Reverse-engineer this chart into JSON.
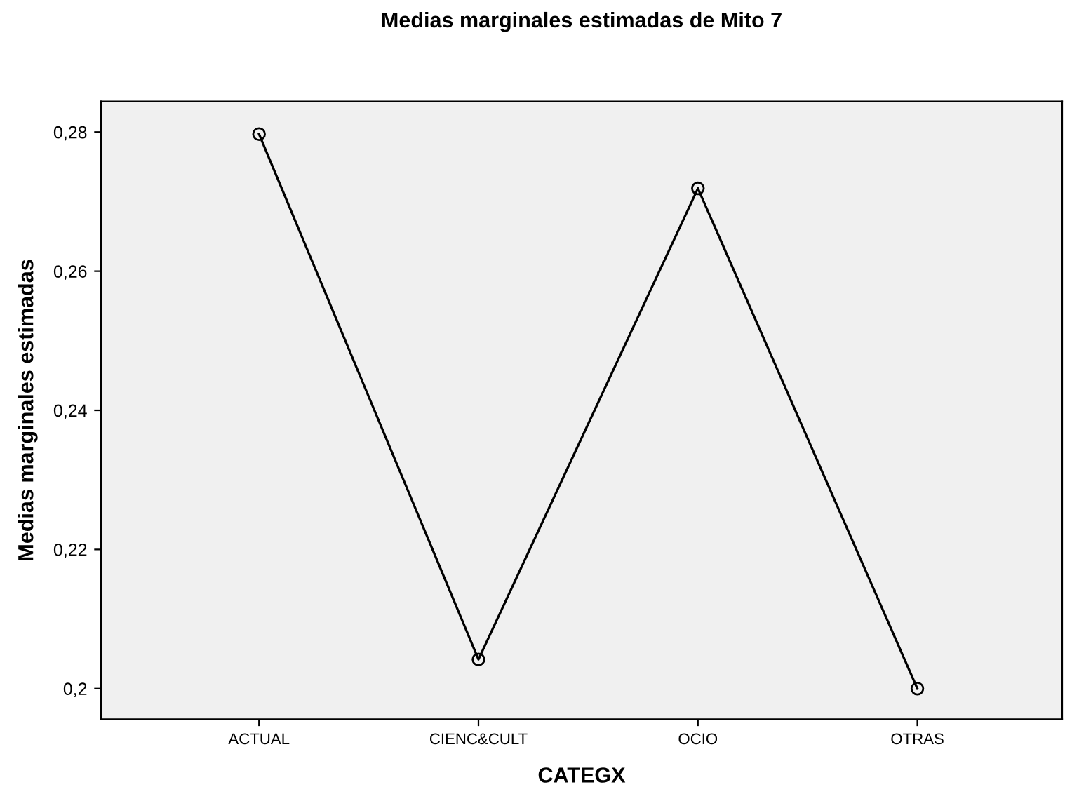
{
  "chart_data": {
    "type": "line",
    "title": "Medias marginales estimadas de Mito 7",
    "xlabel": "CATEGX",
    "ylabel": "Medias marginales estimadas",
    "categories": [
      "ACTUAL",
      "CIENC&CULT",
      "OCIO",
      "OTRAS"
    ],
    "series": [
      {
        "color": "#000000",
        "values": [
          0.2797,
          0.2042,
          0.2719,
          0.2
        ]
      }
    ],
    "ylim": [
      0.1956,
      0.2844
    ],
    "yticks": [
      {
        "value": 0.2,
        "label": "0,2"
      },
      {
        "value": 0.22,
        "label": "0,22"
      },
      {
        "value": 0.24,
        "label": "0,24"
      },
      {
        "value": 0.26,
        "label": "0,26"
      },
      {
        "value": 0.28,
        "label": "0,28"
      }
    ],
    "marker": "circle",
    "line_style": "solid",
    "grid": false
  }
}
